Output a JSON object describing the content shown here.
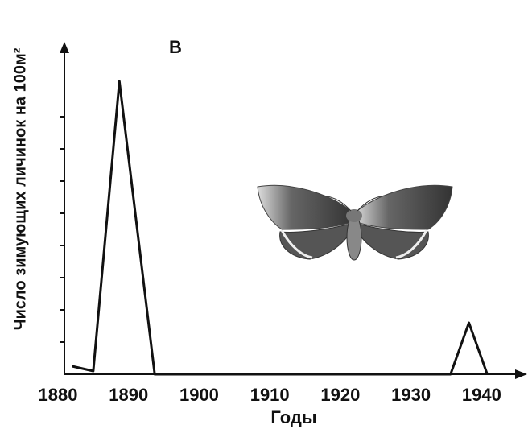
{
  "chart_data": {
    "type": "line",
    "title": "В",
    "y_label": "Число зимующих личинок на 100м²",
    "x_label": "Годы",
    "x": [
      1882,
      1885,
      1888.7,
      1893.7,
      1935.6,
      1938.2,
      1940.8
    ],
    "series": [
      {
        "name": null,
        "color": "#111111",
        "values": [
          0.25,
          0.1,
          9.1,
          0,
          0,
          1.6,
          0
        ]
      }
    ],
    "xlim": [
      1880,
      1946
    ],
    "xticks": [
      1880,
      1890,
      1900,
      1910,
      1920,
      1930,
      1940
    ],
    "ylim": [
      0,
      10
    ],
    "yticks": [
      1,
      2,
      3,
      4,
      5,
      6,
      7,
      8
    ]
  }
}
